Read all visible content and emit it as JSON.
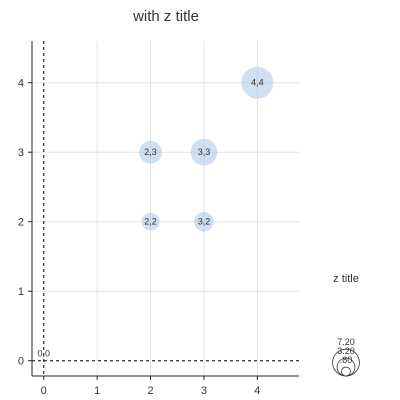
{
  "chart_data": {
    "type": "scatter",
    "title": "with z title",
    "xlim": [
      -0.22,
      4.78
    ],
    "ylim": [
      -0.22,
      4.6
    ],
    "xticks": [
      0,
      1,
      2,
      3,
      4
    ],
    "yticks": [
      0,
      1,
      2,
      3,
      4
    ],
    "grid": true,
    "points": [
      {
        "x": 0,
        "y": 0,
        "z": 0,
        "label": "0,0"
      },
      {
        "x": 2,
        "y": 2,
        "z": 3.2,
        "label": "2,2"
      },
      {
        "x": 3,
        "y": 2,
        "z": 3.8,
        "label": "3,2"
      },
      {
        "x": 2,
        "y": 3,
        "z": 5.2,
        "label": "2,3"
      },
      {
        "x": 3,
        "y": 3,
        "z": 7.2,
        "label": "3,3"
      },
      {
        "x": 4,
        "y": 4,
        "z": 10.2,
        "label": "4,4"
      }
    ],
    "bubble_color": "#a7c7ea",
    "legend": {
      "title": "z title",
      "placement": "bottom-right",
      "values": [
        7.2,
        3.2,
        0.8
      ],
      "labels": [
        "7.20",
        "3.20",
        ".80"
      ]
    }
  }
}
